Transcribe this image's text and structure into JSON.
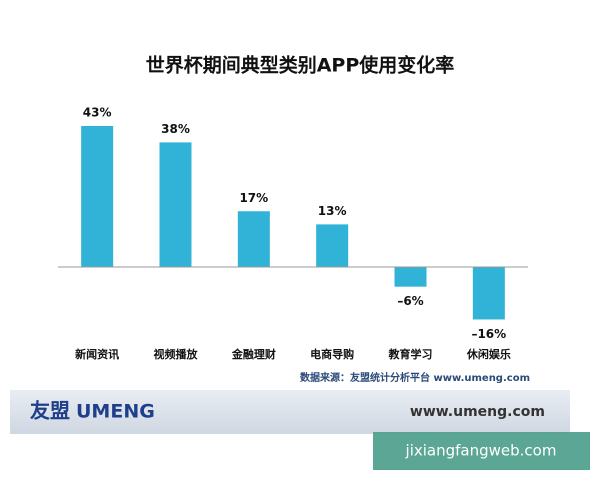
{
  "chart_data": {
    "type": "bar",
    "title": "世界杯期间典型类别APP使用变化率",
    "categories": [
      "新闻资讯",
      "视频播放",
      "金融理财",
      "电商导购",
      "教育学习",
      "休闲娱乐"
    ],
    "values": [
      43,
      38,
      17,
      13,
      -6,
      -16
    ],
    "value_labels": [
      "43%",
      "38%",
      "17%",
      "13%",
      "–6%",
      "–16%"
    ],
    "color": "#30b3d6",
    "source": "数据来源：友盟统计分析平台 www.umeng.com"
  },
  "footer": {
    "logo_cn": "友盟",
    "logo_en": "UMENG",
    "url": "www.umeng.com"
  },
  "watermark": "jixiangfangweb.com"
}
